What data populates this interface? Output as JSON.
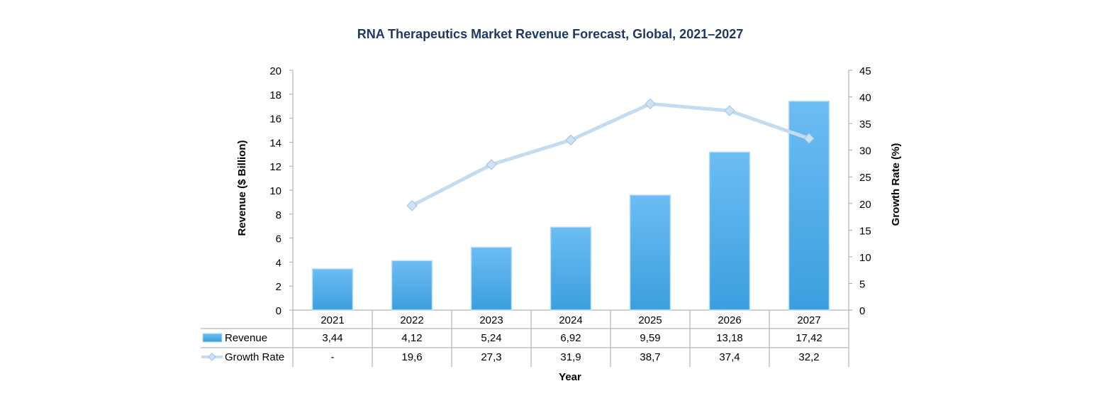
{
  "chart_data": {
    "type": "bar",
    "title": "RNA Therapeutics Market Revenue Forecast, Global, 2021–2027",
    "categories": [
      "2021",
      "2022",
      "2023",
      "2024",
      "2025",
      "2026",
      "2027"
    ],
    "xlabel": "Year",
    "ylabel": "Revenue ($ Billion)",
    "y2label": "Growth Rate (%)",
    "ylim": [
      0,
      20
    ],
    "y2lim": [
      0,
      45
    ],
    "yticks": [
      "0",
      "2",
      "4",
      "6",
      "8",
      "10",
      "12",
      "14",
      "16",
      "18",
      "20"
    ],
    "y2ticks": [
      "0",
      "5",
      "10",
      "15",
      "20",
      "25",
      "30",
      "35",
      "40",
      "45"
    ],
    "series": [
      {
        "name": "Revenue",
        "type": "bar",
        "axis": "left",
        "values": [
          3.44,
          4.12,
          5.24,
          6.92,
          9.59,
          13.18,
          17.42
        ],
        "labels": [
          "3,44",
          "4,12",
          "5,24",
          "6,92",
          "9,59",
          "13,18",
          "17,42"
        ]
      },
      {
        "name": "Growth Rate",
        "type": "line",
        "axis": "right",
        "values": [
          null,
          19.6,
          27.3,
          31.9,
          38.7,
          37.4,
          32.2
        ],
        "labels": [
          "-",
          "19,6",
          "27,3",
          "31,9",
          "38,7",
          "37,4",
          "32,2"
        ]
      }
    ],
    "colors": {
      "bar_top": "#6cbdf3",
      "bar_bottom": "#3c9edf",
      "bar_edge": "#bcdff6",
      "line": "#c4dcf0",
      "marker": "#cfe2f3",
      "marker_edge": "#9ec3e3",
      "axis": "#a6a6a6",
      "title": "#1f3864",
      "text": "#000000"
    },
    "data_table": true,
    "legend": "data-table-left"
  }
}
